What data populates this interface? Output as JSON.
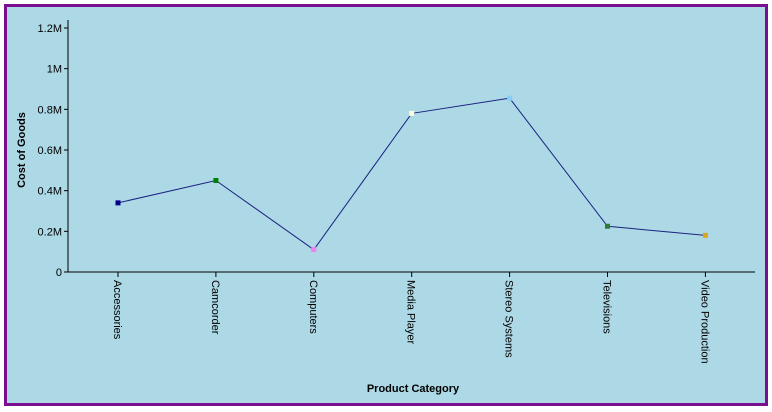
{
  "chart_data": {
    "type": "line",
    "xlabel": "Product Category",
    "ylabel": "Cost of Goods",
    "ylim": [
      0,
      1200000
    ],
    "yticks": [
      {
        "value": 0,
        "label": "0"
      },
      {
        "value": 200000,
        "label": "0.2M"
      },
      {
        "value": 400000,
        "label": "0.4M"
      },
      {
        "value": 600000,
        "label": "0.6M"
      },
      {
        "value": 800000,
        "label": "0.8M"
      },
      {
        "value": 1000000,
        "label": "1M"
      },
      {
        "value": 1200000,
        "label": "1.2M"
      }
    ],
    "categories": [
      "Accessories",
      "Camcorder",
      "Computers",
      "Media Player",
      "Stereo Systems",
      "Televisions",
      "Video Production"
    ],
    "values": [
      340000,
      450000,
      110000,
      780000,
      855000,
      225000,
      180000
    ],
    "line_color": "#1a237e",
    "marker_colors": [
      "#00008b",
      "#008000",
      "#ee82ee",
      "#ffffe0",
      "#87cefa",
      "#2e7d32",
      "#daa520"
    ],
    "background_color": "#add8e6",
    "border_color": "#7a0f8f",
    "grid": false
  }
}
